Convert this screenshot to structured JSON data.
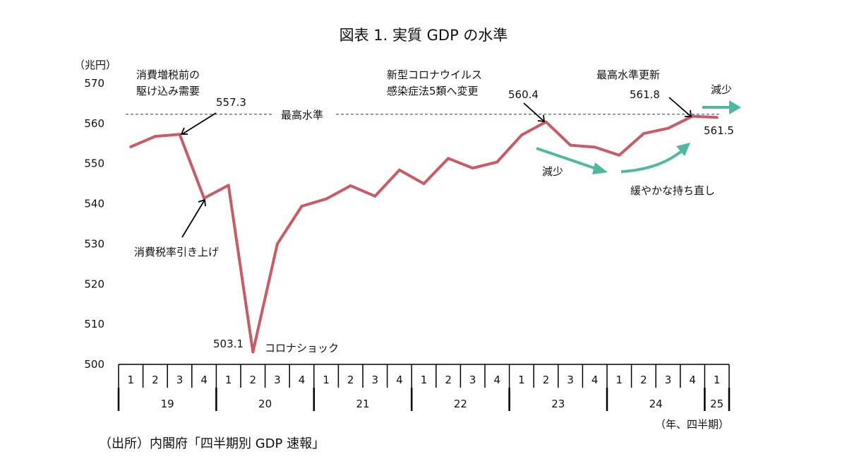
{
  "colors": {
    "series": "#cc5a66",
    "arrow_green": "#4fb9a0",
    "ref_line": "#3c6fa6",
    "axis": "#000000"
  },
  "chart_data": {
    "type": "line",
    "title": "図表 1. 実質 GDP の水準",
    "ylabel": "（兆円）",
    "xlabel": "（年、四半期）",
    "ylim": [
      500,
      570
    ],
    "yticks": [
      500,
      510,
      520,
      530,
      540,
      550,
      560,
      570
    ],
    "grid": false,
    "x_quarters": [
      "1",
      "2",
      "3",
      "4",
      "1",
      "2",
      "3",
      "4",
      "1",
      "2",
      "3",
      "4",
      "1",
      "2",
      "3",
      "4",
      "1",
      "2",
      "3",
      "4",
      "1",
      "2",
      "3",
      "4",
      "1"
    ],
    "x_years": [
      {
        "label": "19",
        "start": 0,
        "end": 4
      },
      {
        "label": "20",
        "start": 4,
        "end": 8
      },
      {
        "label": "21",
        "start": 8,
        "end": 12
      },
      {
        "label": "22",
        "start": 12,
        "end": 16
      },
      {
        "label": "23",
        "start": 16,
        "end": 20
      },
      {
        "label": "24",
        "start": 20,
        "end": 24
      },
      {
        "label": "25",
        "start": 24,
        "end": 25
      }
    ],
    "series": [
      {
        "values": [
          554.2,
          556.8,
          557.3,
          541.4,
          544.6,
          503.1,
          530.0,
          539.4,
          541.2,
          544.5,
          541.9,
          548.4,
          545.0,
          551.3,
          548.9,
          550.4,
          557.1,
          560.4,
          554.6,
          554.1,
          552.1,
          557.5,
          558.8,
          561.8,
          561.5
        ]
      }
    ],
    "reference_line": {
      "value": 562.3,
      "label": "最高水準"
    },
    "annotations": {
      "pre_tax": [
        "消費増税前の",
        "駆け込み需要"
      ],
      "val_5573": "557.3",
      "tax_hike": "消費税率引き上げ",
      "val_5031": "503.1",
      "corona": "コロナショック",
      "covid5": [
        "新型コロナウイルス",
        "感染症法5類へ変更"
      ],
      "val_5604": "560.4",
      "record": "最高水準更新",
      "val_5618": "561.8",
      "val_5615": "561.5",
      "decrease_1": "減少",
      "decrease_2": "減少",
      "recovery": "緩やかな持ち直し"
    }
  },
  "source": "（出所）内閣府「四半期別 GDP 速報」"
}
